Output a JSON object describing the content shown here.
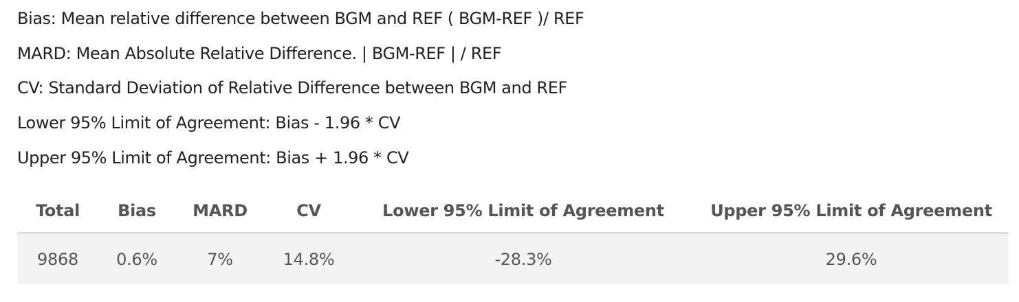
{
  "definitions": [
    "Bias: Mean relative difference between BGM and REF ( BGM-REF )/ REF",
    "MARD: Mean Absolute Relative Difference. | BGM-REF | / REF",
    "CV: Standard Deviation of Relative Difference between BGM and REF",
    "Lower 95% Limit of Agreement: Bias - 1.96 * CV",
    "Upper 95% Limit of Agreement: Bias + 1.96 * CV"
  ],
  "table": {
    "headers": [
      "Total",
      "Bias",
      "MARD",
      "CV",
      "Lower 95% Limit of Agreement",
      "Upper 95% Limit of Agreement"
    ],
    "rows": [
      [
        "9868",
        "0.6%",
        "7%",
        "14.8%",
        "-28.3%",
        "29.6%"
      ]
    ]
  }
}
